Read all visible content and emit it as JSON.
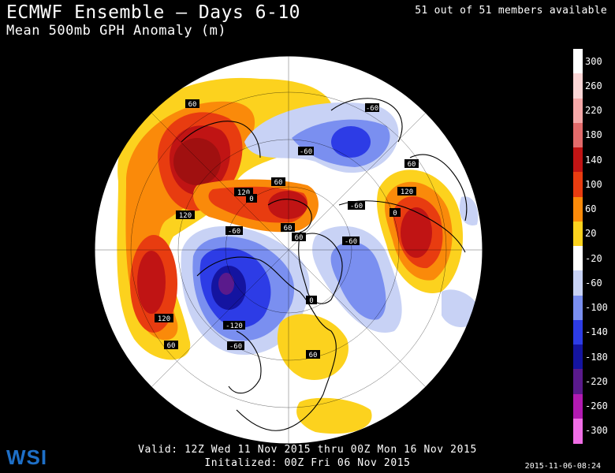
{
  "header": {
    "title": "ECMWF Ensemble – Days 6-10",
    "subtitle": "Mean 500mb GPH Anomaly (m)",
    "members": "51 out of 51 members available"
  },
  "footer": {
    "valid": "Valid: 12Z Wed 11 Nov 2015 thru 00Z Mon 16 Nov 2015",
    "initialized": "Initalized: 00Z Fri 06 Nov 2015",
    "timestamp": "2015-11-06-08:24",
    "logo": "WSI"
  },
  "legend": {
    "entries": [
      {
        "label": "300",
        "color": "#ffffff"
      },
      {
        "label": "260",
        "color": "#fbd6d6"
      },
      {
        "label": "220",
        "color": "#f5a8a8"
      },
      {
        "label": "180",
        "color": "#e26b6b"
      },
      {
        "label": "140",
        "color": "#c01414"
      },
      {
        "label": "100",
        "color": "#e83c10"
      },
      {
        "label": "60",
        "color": "#fa8a0a"
      },
      {
        "label": "20",
        "color": "#fcd21e"
      },
      {
        "label": "-20",
        "color": "#ffffff"
      },
      {
        "label": "-60",
        "color": "#c8d2f5"
      },
      {
        "label": "-100",
        "color": "#7a8ff0"
      },
      {
        "label": "-140",
        "color": "#2d3ce6"
      },
      {
        "label": "-180",
        "color": "#1414a0"
      },
      {
        "label": "-220",
        "color": "#5a1a8c"
      },
      {
        "label": "-260",
        "color": "#b21ab2"
      },
      {
        "label": "-300",
        "color": "#f06ee6"
      }
    ]
  },
  "map": {
    "contour_labels": [
      "60",
      "-60",
      "-60",
      "60",
      "120",
      "60",
      "120",
      "-60",
      "60",
      "60",
      "-60",
      "120",
      "-120",
      "-60",
      "60",
      "0",
      "120",
      "60",
      "0",
      "0",
      "-60"
    ]
  }
}
